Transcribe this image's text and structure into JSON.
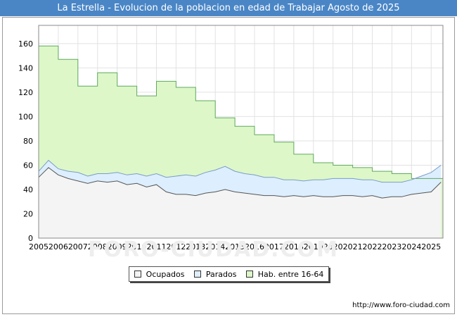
{
  "chart_data": {
    "type": "area",
    "title": "La Estrella - Evolucion de la poblacion en edad de Trabajar Agosto de 2025",
    "xlabel": "",
    "ylabel": "",
    "ylim": [
      0,
      175
    ],
    "y_ticks": [
      0,
      20,
      40,
      60,
      80,
      100,
      120,
      140,
      160
    ],
    "x_ticks": [
      2005,
      2006,
      2007,
      2008,
      2009,
      2010,
      2011,
      2012,
      2013,
      2014,
      2015,
      2016,
      2017,
      2018,
      2019,
      2020,
      2021,
      2022,
      2023,
      2024,
      2025
    ],
    "grid": true,
    "legend_position": "bottom",
    "series": [
      {
        "name": "Ocupados",
        "color": "#f4f4f4",
        "line_color": "#555555",
        "x": [
          2005.0,
          2005.5,
          2006.0,
          2006.5,
          2007.0,
          2007.5,
          2008.0,
          2008.5,
          2009.0,
          2009.5,
          2010.0,
          2010.5,
          2011.0,
          2011.5,
          2012.0,
          2012.5,
          2013.0,
          2013.5,
          2014.0,
          2014.5,
          2015.0,
          2015.5,
          2016.0,
          2016.5,
          2017.0,
          2017.5,
          2018.0,
          2018.5,
          2019.0,
          2019.5,
          2020.0,
          2020.5,
          2021.0,
          2021.5,
          2022.0,
          2022.5,
          2023.0,
          2023.5,
          2024.0,
          2024.5,
          2025.0,
          2025.5
        ],
        "values": [
          50,
          58,
          52,
          49,
          47,
          45,
          47,
          46,
          47,
          44,
          45,
          42,
          44,
          38,
          36,
          36,
          35,
          37,
          38,
          40,
          38,
          37,
          36,
          35,
          35,
          34,
          35,
          34,
          35,
          34,
          34,
          35,
          35,
          34,
          35,
          33,
          34,
          34,
          36,
          37,
          38,
          46
        ]
      },
      {
        "name": "Parados",
        "color": "#ddeeff",
        "line_color": "#7a9cc8",
        "x": [
          2005.0,
          2005.5,
          2006.0,
          2006.5,
          2007.0,
          2007.5,
          2008.0,
          2008.5,
          2009.0,
          2009.5,
          2010.0,
          2010.5,
          2011.0,
          2011.5,
          2012.0,
          2012.5,
          2013.0,
          2013.5,
          2014.0,
          2014.5,
          2015.0,
          2015.5,
          2016.0,
          2016.5,
          2017.0,
          2017.5,
          2018.0,
          2018.5,
          2019.0,
          2019.5,
          2020.0,
          2020.5,
          2021.0,
          2021.5,
          2022.0,
          2022.5,
          2023.0,
          2023.5,
          2024.0,
          2024.5,
          2025.0,
          2025.5
        ],
        "values": [
          5,
          6,
          5,
          6,
          7,
          6,
          6,
          7,
          7,
          8,
          8,
          9,
          9,
          12,
          15,
          16,
          16,
          17,
          18,
          19,
          17,
          16,
          16,
          15,
          15,
          14,
          13,
          13,
          13,
          14,
          15,
          14,
          14,
          14,
          13,
          13,
          12,
          12,
          12,
          14,
          16,
          14
        ]
      },
      {
        "name": "Hab. entre 16-64",
        "color": "#ddf7c8",
        "line_color": "#5faa5f",
        "x": [
          2005,
          2006,
          2007,
          2008,
          2009,
          2010,
          2011,
          2012,
          2013,
          2014,
          2015,
          2016,
          2017,
          2018,
          2019,
          2020,
          2021,
          2022,
          2023,
          2024
        ],
        "values": [
          158,
          147,
          125,
          136,
          125,
          117,
          129,
          124,
          113,
          99,
          92,
          85,
          79,
          69,
          62,
          60,
          58,
          55,
          53,
          49
        ]
      }
    ]
  },
  "source_text": "http://www.foro-ciudad.com",
  "watermark": "FORO-CIUDAD.COM"
}
